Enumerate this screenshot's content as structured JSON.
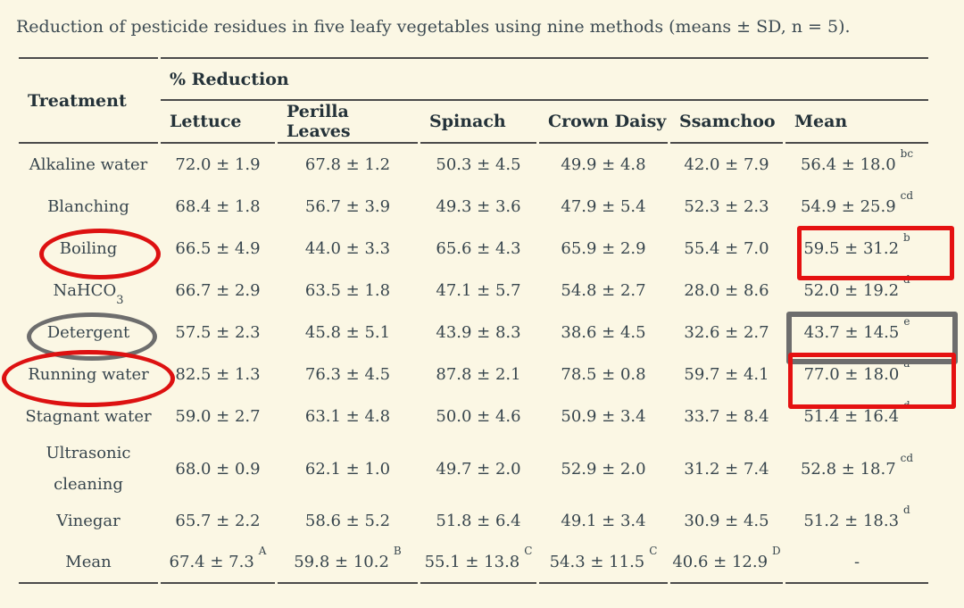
{
  "title": "Reduction of pesticide residues in five leafy vegetables using nine methods (means ± SD, n = 5).",
  "table": {
    "corner_header": "Treatment",
    "group_header": "% Reduction",
    "columns": [
      "Lettuce",
      "Perilla Leaves",
      "Spinach",
      "Crown Daisy",
      "Ssamchoo",
      "Mean"
    ],
    "rows": [
      {
        "treatment": "Alkaline water",
        "values": [
          "72.0 ± 1.9",
          "67.8 ± 1.2",
          "50.3 ± 4.5",
          "49.9 ± 4.8",
          "42.0 ± 7.9"
        ],
        "mean": "56.4 ± 18.0",
        "mean_sup": "bc"
      },
      {
        "treatment": "Blanching",
        "values": [
          "68.4 ± 1.8",
          "56.7 ± 3.9",
          "49.3 ± 3.6",
          "47.9 ± 5.4",
          "52.3 ± 2.3"
        ],
        "mean": "54.9 ± 25.9",
        "mean_sup": "cd"
      },
      {
        "treatment": "Boiling",
        "values": [
          "66.5 ± 4.9",
          "44.0 ± 3.3",
          "65.6 ± 4.3",
          "65.9 ± 2.9",
          "55.4 ± 7.0"
        ],
        "mean": "59.5 ± 31.2",
        "mean_sup": "b"
      },
      {
        "treatment": "NaHCO",
        "treatment_sub": "3",
        "values": [
          "66.7 ± 2.9",
          "63.5 ± 1.8",
          "47.1 ± 5.7",
          "54.8 ± 2.7",
          "28.0 ± 8.6"
        ],
        "mean": "52.0 ± 19.2",
        "mean_sup": "d"
      },
      {
        "treatment": "Detergent",
        "values": [
          "57.5 ± 2.3",
          "45.8 ± 5.1",
          "43.9 ± 8.3",
          "38.6 ± 4.5",
          "32.6 ± 2.7"
        ],
        "mean": "43.7 ± 14.5",
        "mean_sup": "e"
      },
      {
        "treatment": "Running water",
        "values": [
          "82.5 ± 1.3",
          "76.3 ± 4.5",
          "87.8 ± 2.1",
          "78.5 ± 0.8",
          "59.7 ± 4.1"
        ],
        "mean": "77.0 ± 18.0",
        "mean_sup": "a"
      },
      {
        "treatment": "Stagnant water",
        "values": [
          "59.0 ± 2.7",
          "63.1 ± 4.8",
          "50.0 ± 4.6",
          "50.9 ± 3.4",
          "33.7 ± 8.4"
        ],
        "mean": "51.4 ± 16.4",
        "mean_sup": "d"
      },
      {
        "treatment": "Ultrasonic cleaning",
        "values": [
          "68.0 ± 0.9",
          "62.1 ± 1.0",
          "49.7 ± 2.0",
          "52.9 ± 2.0",
          "31.2 ± 7.4"
        ],
        "mean": "52.8 ± 18.7",
        "mean_sup": "cd"
      },
      {
        "treatment": "Vinegar",
        "values": [
          "65.7 ± 2.2",
          "58.6 ± 5.2",
          "51.8 ± 6.4",
          "49.1 ± 3.4",
          "30.9 ± 4.5"
        ],
        "mean": "51.2 ± 18.3",
        "mean_sup": "d"
      }
    ],
    "footer": {
      "treatment": "Mean",
      "values": [
        {
          "value": "67.4 ± 7.3",
          "sup": "A"
        },
        {
          "value": "59.8 ± 10.2",
          "sup": "B"
        },
        {
          "value": "55.1 ± 13.8",
          "sup": "C"
        },
        {
          "value": "54.3 ± 11.5",
          "sup": "C"
        },
        {
          "value": "40.6 ± 12.9",
          "sup": "D"
        }
      ],
      "mean": "-"
    }
  },
  "annotations": [
    {
      "id": "ellipse-boiling",
      "shape": "ellipse",
      "color": "#dd1111",
      "around": "Boiling"
    },
    {
      "id": "ellipse-detergent",
      "shape": "ellipse",
      "color": "#6d6d6d",
      "around": "Detergent"
    },
    {
      "id": "ellipse-running-water",
      "shape": "ellipse",
      "color": "#dd1111",
      "around": "Running water"
    },
    {
      "id": "rect-boiling-mean",
      "shape": "rectangle",
      "color": "#e51111",
      "around": "59.5 ± 31.2 b"
    },
    {
      "id": "rect-detergent-mean",
      "shape": "rectangle",
      "color": "#6d6d6d",
      "around": "43.7 ± 14.5 e"
    },
    {
      "id": "rect-running-water-mean",
      "shape": "rectangle",
      "color": "#e51111",
      "around": "77.0 ± 18.0 a"
    }
  ],
  "colors": {
    "background": "#fbf7e4",
    "text": "#37454d",
    "heading_text": "#243239",
    "rule": "#4b4b4b",
    "annotation_red": "#dd1111",
    "annotation_gray": "#6d6d6d"
  }
}
